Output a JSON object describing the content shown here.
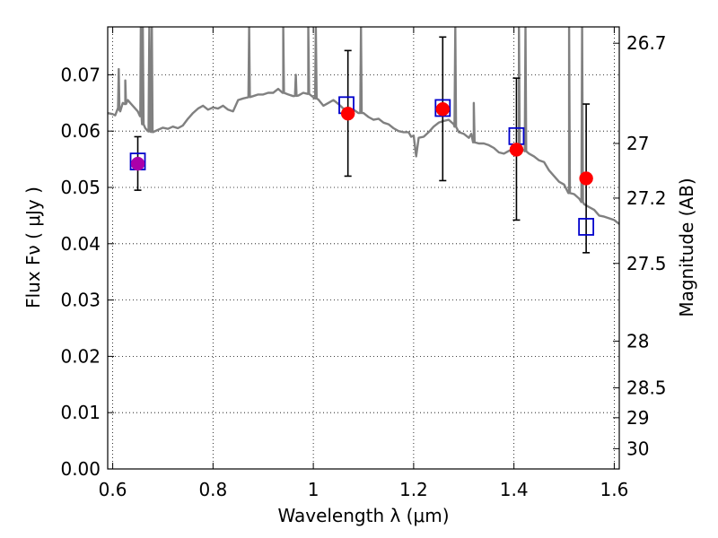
{
  "chart_data": {
    "type": "scatter",
    "xlabel": "Wavelength  λ (μm)",
    "ylabel": "Flux  Fν  ( μJy )",
    "ylabel_right": "Magnitude (AB)",
    "xlim": [
      0.59,
      1.61
    ],
    "ylim": [
      0.0,
      0.0785
    ],
    "x_ticks": [
      0.6,
      0.8,
      1.0,
      1.2,
      1.4,
      1.6
    ],
    "x_tick_labels": [
      "0.6",
      "0.8",
      "1",
      "1.2",
      "1.4",
      "1.6"
    ],
    "y_ticks": [
      0.0,
      0.01,
      0.02,
      0.03,
      0.04,
      0.05,
      0.06,
      0.07
    ],
    "y_tick_labels": [
      "0.00",
      "0.01",
      "0.02",
      "0.03",
      "0.04",
      "0.05",
      "0.06",
      "0.07"
    ],
    "right_ticks": [
      {
        "label": "26.7",
        "flux": 0.0756
      },
      {
        "label": "27",
        "flux": 0.0578
      },
      {
        "label": "27.2",
        "flux": 0.0481
      },
      {
        "label": "27.5",
        "flux": 0.0365
      },
      {
        "label": "28",
        "flux": 0.0227
      },
      {
        "label": "28.5",
        "flux": 0.0144
      },
      {
        "label": "29",
        "flux": 0.0091
      },
      {
        "label": "30",
        "flux": 0.0036
      }
    ],
    "grid": true,
    "colors": {
      "model_spectrum": "#808080",
      "observed": "#ff0000",
      "model_photometry": "#0000cc",
      "overlap": "#aa00aa",
      "errorbar": "#000000"
    },
    "series": [
      {
        "type": "errorbar",
        "points": [
          {
            "x": 0.65,
            "y": 0.0542,
            "ylow": 0.0495,
            "yhigh": 0.059
          },
          {
            "x": 1.069,
            "y": 0.0631,
            "ylow": 0.052,
            "yhigh": 0.0743
          },
          {
            "x": 1.258,
            "y": 0.0639,
            "ylow": 0.0512,
            "yhigh": 0.0767
          },
          {
            "x": 1.405,
            "y": 0.0567,
            "ylow": 0.0442,
            "yhigh": 0.0694
          },
          {
            "x": 1.544,
            "y": 0.0516,
            "ylow": 0.0384,
            "yhigh": 0.0648
          }
        ]
      },
      {
        "type": "square",
        "points": [
          {
            "x": 0.65,
            "y": 0.0546
          },
          {
            "x": 1.066,
            "y": 0.0646
          },
          {
            "x": 1.258,
            "y": 0.0641
          },
          {
            "x": 1.405,
            "y": 0.0591
          },
          {
            "x": 1.544,
            "y": 0.043
          }
        ]
      },
      {
        "type": "line",
        "x": [
          0.59,
          0.6,
          0.605,
          0.61,
          0.615,
          0.62,
          0.625,
          0.63,
          0.635,
          0.64,
          0.645,
          0.65,
          0.655,
          0.66,
          0.665,
          0.67,
          0.68,
          0.69,
          0.7,
          0.71,
          0.72,
          0.73,
          0.74,
          0.75,
          0.76,
          0.77,
          0.78,
          0.79,
          0.8,
          0.81,
          0.82,
          0.83,
          0.84,
          0.85,
          0.86,
          0.87,
          0.88,
          0.89,
          0.9,
          0.91,
          0.92,
          0.93,
          0.94,
          0.95,
          0.96,
          0.97,
          0.98,
          0.99,
          1.0,
          1.01,
          1.02,
          1.03,
          1.04,
          1.05,
          1.06,
          1.07,
          1.08,
          1.09,
          1.1,
          1.11,
          1.12,
          1.13,
          1.14,
          1.15,
          1.16,
          1.17,
          1.18,
          1.19,
          1.195,
          1.2,
          1.205,
          1.21,
          1.22,
          1.23,
          1.24,
          1.25,
          1.26,
          1.27,
          1.28,
          1.29,
          1.3,
          1.31,
          1.315,
          1.32,
          1.33,
          1.34,
          1.35,
          1.36,
          1.37,
          1.38,
          1.39,
          1.4,
          1.41,
          1.42,
          1.43,
          1.44,
          1.45,
          1.46,
          1.47,
          1.48,
          1.49,
          1.5,
          1.51,
          1.52,
          1.53,
          1.54,
          1.55,
          1.56,
          1.57,
          1.58,
          1.59,
          1.6,
          1.61
        ],
        "y": [
          0.0632,
          0.063,
          0.0628,
          0.064,
          0.0635,
          0.065,
          0.0648,
          0.0655,
          0.065,
          0.0645,
          0.064,
          0.0635,
          0.063,
          0.0612,
          0.0605,
          0.06,
          0.0598,
          0.0602,
          0.0606,
          0.0604,
          0.0608,
          0.0605,
          0.061,
          0.0622,
          0.0632,
          0.064,
          0.0645,
          0.0638,
          0.0642,
          0.064,
          0.0645,
          0.0638,
          0.0635,
          0.0655,
          0.0658,
          0.066,
          0.0662,
          0.0665,
          0.0665,
          0.0668,
          0.0668,
          0.0675,
          0.0668,
          0.0665,
          0.0662,
          0.0663,
          0.0668,
          0.0666,
          0.066,
          0.0656,
          0.0645,
          0.065,
          0.0655,
          0.0648,
          0.064,
          0.064,
          0.0638,
          0.0632,
          0.0632,
          0.0625,
          0.062,
          0.0622,
          0.0615,
          0.0612,
          0.0605,
          0.06,
          0.0598,
          0.0598,
          0.059,
          0.0592,
          0.0555,
          0.0588,
          0.059,
          0.0598,
          0.0608,
          0.0615,
          0.0618,
          0.062,
          0.0612,
          0.0598,
          0.0595,
          0.0588,
          0.0595,
          0.058,
          0.0578,
          0.0578,
          0.0575,
          0.057,
          0.0562,
          0.056,
          0.0565,
          0.0568,
          0.057,
          0.0566,
          0.056,
          0.0555,
          0.0548,
          0.0545,
          0.053,
          0.052,
          0.051,
          0.0505,
          0.049,
          0.0488,
          0.048,
          0.047,
          0.0465,
          0.046,
          0.045,
          0.0448,
          0.0445,
          0.0442,
          0.0435
        ],
        "spikes": [
          {
            "x": 0.612,
            "y": 0.071
          },
          {
            "x": 0.625,
            "y": 0.069
          },
          {
            "x": 0.656,
            "y": 0.0785
          },
          {
            "x": 0.66,
            "y": 0.0785
          },
          {
            "x": 0.673,
            "y": 0.0785
          },
          {
            "x": 0.678,
            "y": 0.0785
          },
          {
            "x": 0.872,
            "y": 0.0785
          },
          {
            "x": 0.94,
            "y": 0.0785
          },
          {
            "x": 0.965,
            "y": 0.07
          },
          {
            "x": 0.99,
            "y": 0.0785
          },
          {
            "x": 1.005,
            "y": 0.0785
          },
          {
            "x": 1.095,
            "y": 0.0785
          },
          {
            "x": 1.283,
            "y": 0.0785
          },
          {
            "x": 1.32,
            "y": 0.065
          },
          {
            "x": 1.41,
            "y": 0.0785
          },
          {
            "x": 1.423,
            "y": 0.0785
          },
          {
            "x": 1.51,
            "y": 0.0785
          },
          {
            "x": 1.536,
            "y": 0.0785
          }
        ]
      }
    ]
  }
}
